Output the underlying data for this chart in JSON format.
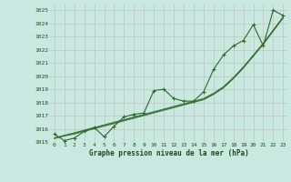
{
  "title": "Graphe pression niveau de la mer (hPa)",
  "bg_color": "#c8e8e0",
  "line_color": "#2d6a2d",
  "x_ticks": [
    0,
    1,
    2,
    3,
    4,
    5,
    6,
    7,
    8,
    9,
    10,
    11,
    12,
    13,
    14,
    15,
    16,
    17,
    18,
    19,
    20,
    21,
    22,
    23
  ],
  "ylim": [
    1015,
    1025.5
  ],
  "yticks": [
    1015,
    1016,
    1017,
    1018,
    1019,
    1020,
    1021,
    1022,
    1023,
    1024,
    1025
  ],
  "data_line": [
    1015.6,
    1015.1,
    1015.3,
    1015.8,
    1016.1,
    1015.4,
    1016.2,
    1016.9,
    1017.1,
    1017.2,
    1018.9,
    1019.0,
    1018.3,
    1018.1,
    1018.1,
    1018.8,
    1020.5,
    1021.6,
    1022.3,
    1022.7,
    1023.9,
    1022.3,
    1025.0,
    1024.6
  ],
  "trend_lines": [
    [
      1015.3,
      1015.5,
      1015.7,
      1015.9,
      1016.1,
      1016.3,
      1016.5,
      1016.7,
      1016.9,
      1017.1,
      1017.3,
      1017.5,
      1017.7,
      1017.9,
      1018.1,
      1018.3,
      1018.7,
      1019.2,
      1019.9,
      1020.7,
      1021.6,
      1022.5,
      1023.5,
      1024.5
    ],
    [
      1015.3,
      1015.5,
      1015.65,
      1015.85,
      1016.05,
      1016.25,
      1016.45,
      1016.65,
      1016.85,
      1017.05,
      1017.25,
      1017.45,
      1017.65,
      1017.85,
      1018.05,
      1018.25,
      1018.65,
      1019.15,
      1019.85,
      1020.65,
      1021.55,
      1022.45,
      1023.45,
      1024.45
    ],
    [
      1015.25,
      1015.45,
      1015.6,
      1015.8,
      1016.0,
      1016.2,
      1016.4,
      1016.6,
      1016.8,
      1017.0,
      1017.2,
      1017.4,
      1017.6,
      1017.8,
      1018.0,
      1018.2,
      1018.6,
      1019.1,
      1019.8,
      1020.6,
      1021.5,
      1022.4,
      1023.4,
      1024.4
    ]
  ],
  "figsize": [
    3.2,
    2.0
  ],
  "dpi": 100
}
